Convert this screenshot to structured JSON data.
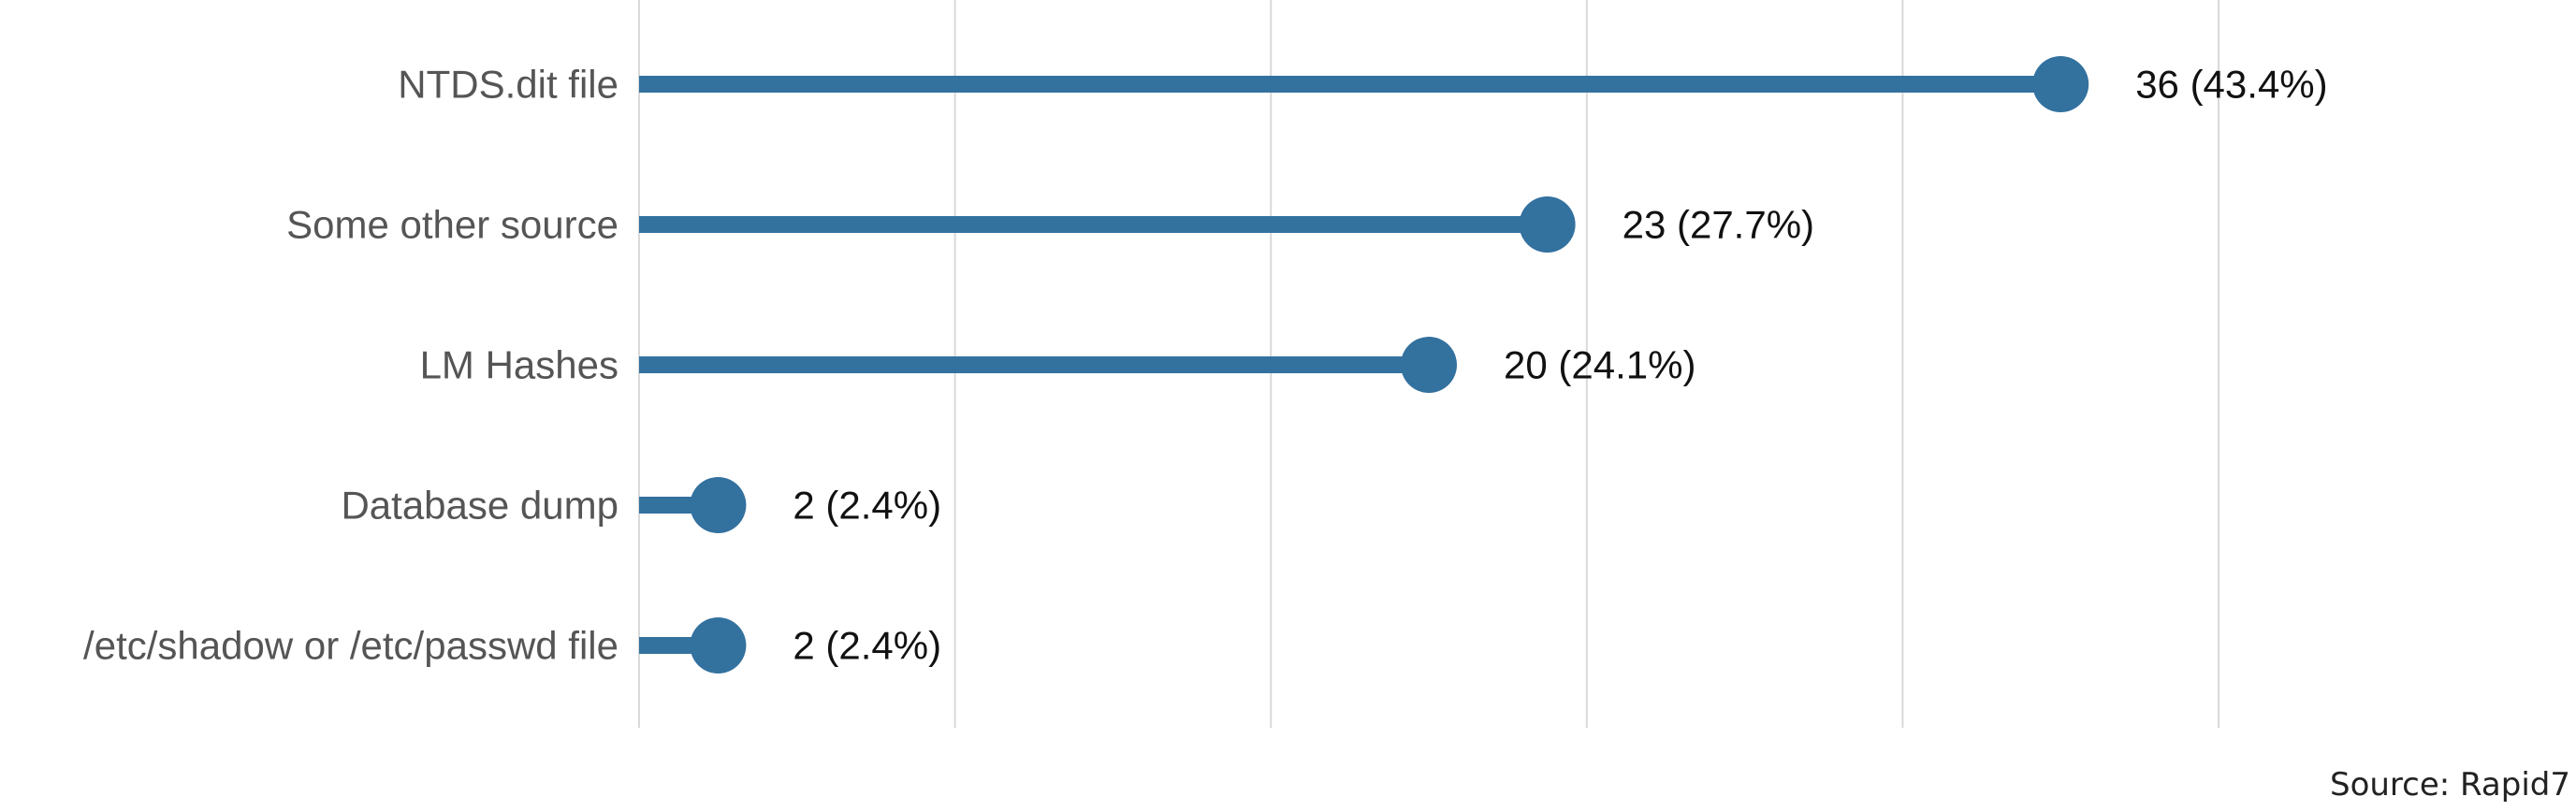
{
  "chart_data": {
    "type": "bar",
    "subtype": "lollipop-horizontal",
    "categories": [
      "NTDS.dit file",
      "Some other source",
      "LM Hashes",
      "Database dump",
      "/etc/shadow or /etc/passwd file"
    ],
    "values": [
      36,
      23,
      20,
      2,
      2
    ],
    "value_labels": [
      "36 (43.4%)",
      "23 (27.7%)",
      "20 (24.1%)",
      "2 (2.4%)",
      "2 (2.4%)"
    ],
    "xlim": [
      0,
      45
    ],
    "grid": true,
    "title": "",
    "xlabel": "",
    "ylabel": "",
    "colors": {
      "bar": "#33719f",
      "grid": "#d9d9d9"
    }
  },
  "source_text": "Source: Rapid7"
}
